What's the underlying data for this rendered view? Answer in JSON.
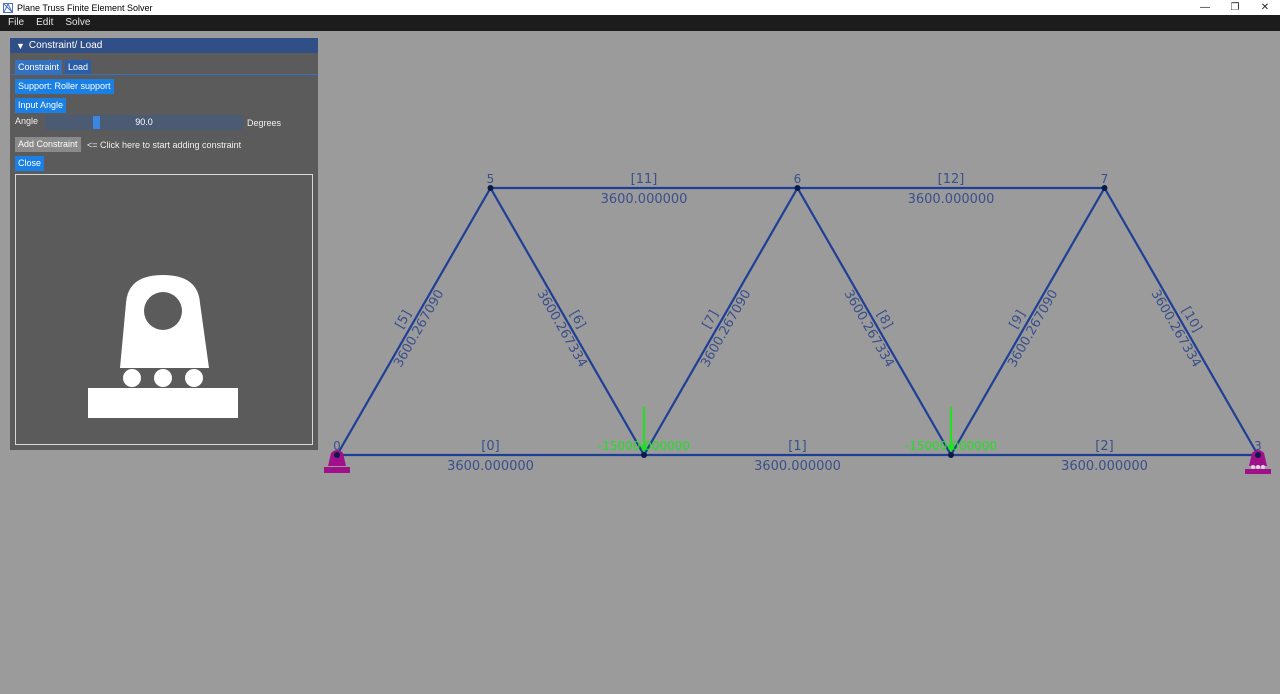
{
  "window": {
    "title": "Plane Truss Finite Element Solver"
  },
  "menu": [
    "File",
    "Edit",
    "Solve"
  ],
  "panel": {
    "header": "Constraint/ Load",
    "tabs": [
      "Constraint",
      "Load"
    ],
    "support_button": "Support: Roller support",
    "input_angle_button": "Input Angle",
    "angle_label": "Angle",
    "angle_value": "90.0",
    "angle_fraction": 0.25,
    "angle_unit": "Degrees",
    "add_constraint_button": "Add Constraint",
    "hint": "<= Click here to start adding constraint",
    "close_button": "Close"
  },
  "truss": {
    "nodes": [
      {
        "id": "0",
        "x": 0,
        "y": 0
      },
      {
        "id": "1",
        "x": 1,
        "y": 0
      },
      {
        "id": "2",
        "x": 2,
        "y": 0
      },
      {
        "id": "3",
        "x": 3,
        "y": 0
      },
      {
        "id": "5",
        "x": 0.5,
        "y": 1
      },
      {
        "id": "6",
        "x": 1.5,
        "y": 1
      },
      {
        "id": "7",
        "x": 2.5,
        "y": 1
      }
    ],
    "visible_node_labels": [
      "0",
      "3",
      "5",
      "6",
      "7"
    ],
    "elements": [
      {
        "id": "[0]",
        "from": "0",
        "to": "1",
        "value": "3600.000000"
      },
      {
        "id": "[1]",
        "from": "1",
        "to": "2",
        "value": "3600.000000"
      },
      {
        "id": "[2]",
        "from": "2",
        "to": "3",
        "value": "3600.000000"
      },
      {
        "id": "[5]",
        "from": "0",
        "to": "5",
        "value": "3600.267090"
      },
      {
        "id": "[6]",
        "from": "5",
        "to": "1",
        "value": "3600.267334"
      },
      {
        "id": "[7]",
        "from": "1",
        "to": "6",
        "value": "3600.267090"
      },
      {
        "id": "[8]",
        "from": "6",
        "to": "2",
        "value": "3600.267334"
      },
      {
        "id": "[9]",
        "from": "2",
        "to": "7",
        "value": "3600.267090"
      },
      {
        "id": "[10]",
        "from": "7",
        "to": "3",
        "value": "3600.267334"
      },
      {
        "id": "[11]",
        "from": "5",
        "to": "6",
        "value": "3600.000000"
      },
      {
        "id": "[12]",
        "from": "6",
        "to": "7",
        "value": "3600.000000"
      }
    ],
    "loads": [
      {
        "node": "1",
        "text": "-15000.000000"
      },
      {
        "node": "2",
        "text": "-15000.000000"
      }
    ],
    "supports": [
      {
        "node": "0",
        "type": "pinned"
      },
      {
        "node": "3",
        "type": "roller"
      }
    ],
    "colors": {
      "member": "#1f3f96",
      "label": "#3a4f8c",
      "load": "#22e022",
      "support": "#a0108a"
    }
  }
}
